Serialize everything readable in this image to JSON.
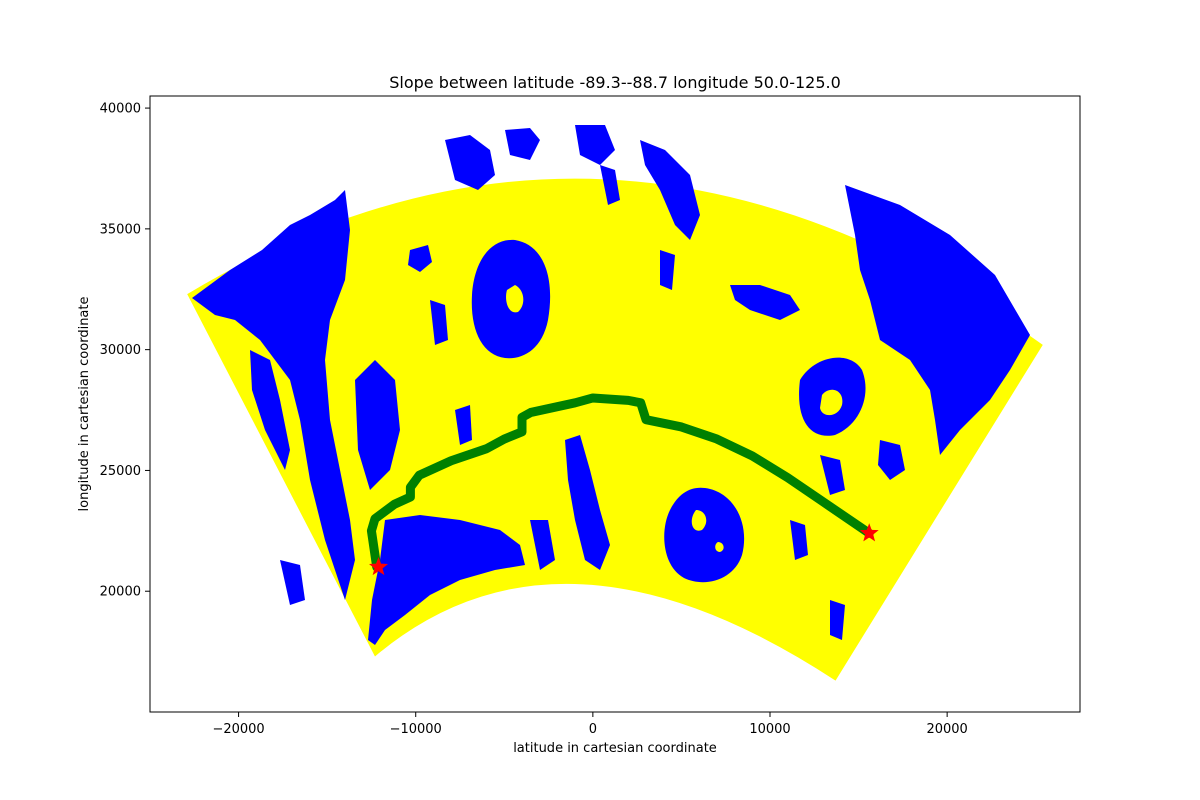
{
  "chart_data": {
    "type": "scatter",
    "title": "Slope between latitude -89.3--88.7 longitude 50.0-125.0",
    "xlabel": "latitude in cartesian coordinate",
    "ylabel": "longitude in cartesian coordinate",
    "xlim": [
      -25000,
      27500
    ],
    "ylim": [
      15000,
      40500
    ],
    "xticks": [
      -20000,
      -10000,
      0,
      10000,
      20000
    ],
    "xtick_labels": [
      "−20000",
      "−10000",
      "0",
      "10000",
      "20000"
    ],
    "yticks": [
      20000,
      25000,
      30000,
      35000,
      40000
    ],
    "ytick_labels": [
      "20000",
      "25000",
      "30000",
      "35000",
      "40000"
    ],
    "grid": false,
    "colors": {
      "low_slope": "#ffff00",
      "high_slope": "#0000ff",
      "path": "#008000",
      "endpoints": "#ff0000"
    },
    "region": {
      "description": "annular sector of slope map",
      "corners": [
        [
          -22900,
          32300
        ],
        [
          25400,
          30200
        ],
        [
          13700,
          16300
        ],
        [
          -12300,
          17300
        ]
      ]
    },
    "path": {
      "x": [
        -12200,
        -12500,
        -12300,
        -11200,
        -10300,
        -10300,
        -9800,
        -8000,
        -6000,
        -5000,
        -4000,
        -4000,
        -3500,
        -1000,
        0,
        2000,
        2700,
        3000,
        5000,
        7000,
        9000,
        11000,
        13000,
        15600
      ],
      "y": [
        21000,
        22500,
        23000,
        23600,
        23900,
        24300,
        24800,
        25400,
        25900,
        26300,
        26600,
        27200,
        27400,
        27800,
        28000,
        27900,
        27800,
        27100,
        26800,
        26300,
        25600,
        24700,
        23700,
        22400
      ]
    },
    "endpoints": {
      "x": [
        -12100,
        15600
      ],
      "y": [
        21000,
        22400
      ]
    }
  }
}
